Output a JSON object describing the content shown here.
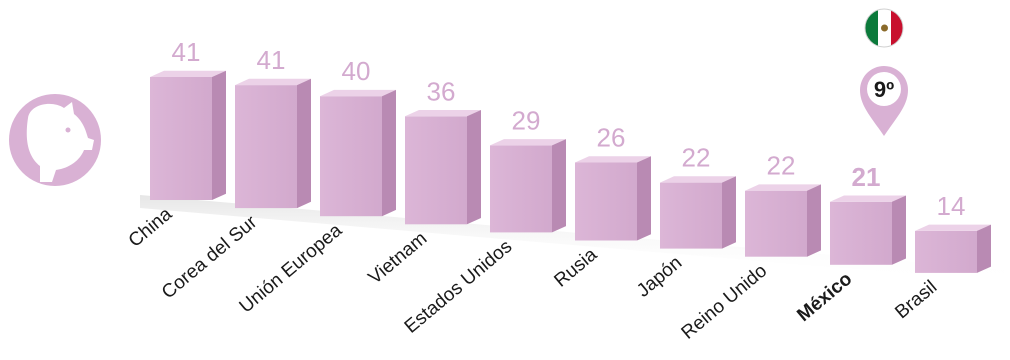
{
  "chart_data": {
    "type": "bar",
    "categories": [
      "China",
      "Corea del Sur",
      "Unión Europea",
      "Vietnam",
      "Estados Unidos",
      "Rusia",
      "Japón",
      "Reino Unido",
      "México",
      "Brasil"
    ],
    "values": [
      41,
      41,
      40,
      36,
      29,
      26,
      22,
      22,
      21,
      14
    ],
    "highlight": "México",
    "rank_label": "9º",
    "ylim": [
      0,
      45
    ],
    "grid": false,
    "legend": "none",
    "title": "",
    "xlabel": "",
    "ylabel": ""
  },
  "icons": {
    "category": "pig-icon",
    "flag": "mexico-flag-icon",
    "marker": "map-pin-icon"
  },
  "colors": {
    "bar_front": "#d9b1d4",
    "bar_top": "#ecd2e8",
    "bar_side": "#b98ab3",
    "value_label": "#d3aacf",
    "badge": "#d9b1d4",
    "flag_green": "#0b7a3b",
    "flag_red": "#c8102e"
  }
}
